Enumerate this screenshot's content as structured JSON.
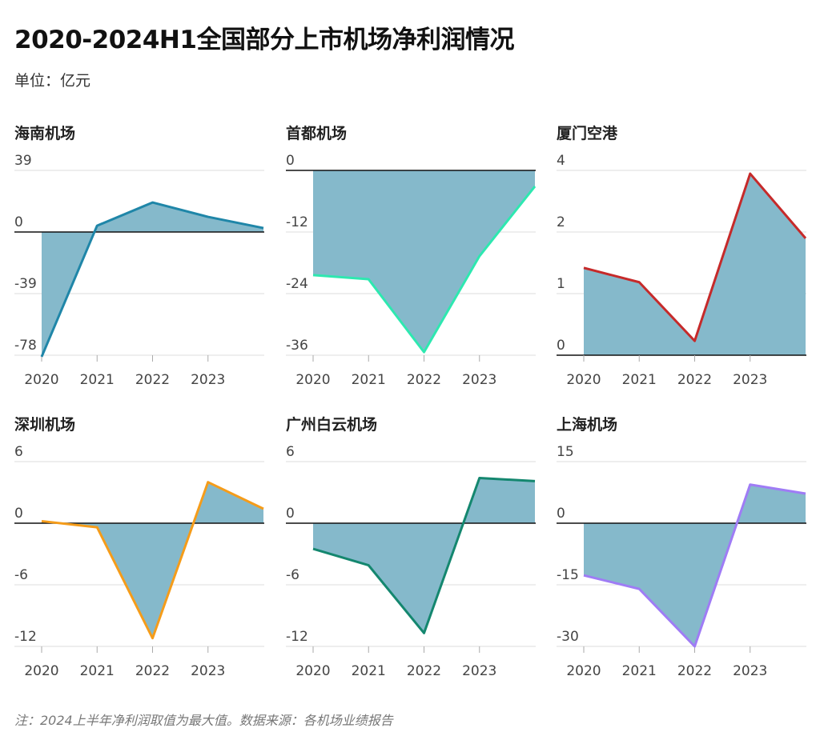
{
  "header": {
    "title": "2020-2024H1全国部分上市机场净利润情况",
    "unit": "单位：亿元"
  },
  "footer": {
    "note": "注：2024上半年净利润取值为最大值。数据来源：各机场业绩报告"
  },
  "colors": {
    "fill": "#85b9cb",
    "grid": "#dddddd",
    "axis": "#111111"
  },
  "chart_data": [
    {
      "type": "area",
      "title": "海南机场",
      "x": [
        "2020",
        "2021",
        "2022",
        "2023",
        "2024H1"
      ],
      "x_tick_labels": [
        "2020",
        "2021",
        "2022",
        "2023"
      ],
      "values": [
        -79,
        4,
        18.7,
        9.6,
        2.5
      ],
      "ylim": [
        -78,
        39
      ],
      "y_ticks": [
        "39",
        "0",
        "-39",
        "-78"
      ],
      "line_color": "#1f86a8"
    },
    {
      "type": "area",
      "title": "首都机场",
      "x": [
        "2020",
        "2021",
        "2022",
        "2023",
        "2024H1"
      ],
      "x_tick_labels": [
        "2020",
        "2021",
        "2022",
        "2023"
      ],
      "values": [
        -20.4,
        -21.2,
        -35.4,
        -16.7,
        -3.1
      ],
      "ylim": [
        -36,
        0
      ],
      "y_ticks": [
        "0",
        "-12",
        "-24",
        "-36"
      ],
      "line_color": "#2ee8b0"
    },
    {
      "type": "area",
      "title": "厦门空港",
      "x": [
        "2020",
        "2021",
        "2022",
        "2023",
        "2024H1"
      ],
      "x_tick_labels": [
        "2020",
        "2021",
        "2022",
        "2023"
      ],
      "values": [
        1.89,
        1.58,
        0.31,
        3.93,
        2.53
      ],
      "ylim": [
        0,
        4
      ],
      "y_ticks": [
        "4",
        "2",
        "1",
        "0"
      ],
      "line_color": "#c62a2a"
    },
    {
      "type": "area",
      "title": "深圳机场",
      "x": [
        "2020",
        "2021",
        "2022",
        "2023",
        "2024H1"
      ],
      "x_tick_labels": [
        "2020",
        "2021",
        "2022",
        "2023"
      ],
      "values": [
        0.2,
        -0.4,
        -11.2,
        4.0,
        1.4
      ],
      "ylim": [
        -12,
        6
      ],
      "y_ticks": [
        "6",
        "0",
        "-6",
        "-12"
      ],
      "line_color": "#f59c1a"
    },
    {
      "type": "area",
      "title": "广州白云机场",
      "x": [
        "2020",
        "2021",
        "2022",
        "2023",
        "2024H1"
      ],
      "x_tick_labels": [
        "2020",
        "2021",
        "2022",
        "2023"
      ],
      "values": [
        -2.5,
        -4.1,
        -10.7,
        4.4,
        4.1
      ],
      "ylim": [
        -12,
        6
      ],
      "y_ticks": [
        "6",
        "0",
        "-6",
        "-12"
      ],
      "line_color": "#14876f"
    },
    {
      "type": "area",
      "title": "上海机场",
      "x": [
        "2020",
        "2021",
        "2022",
        "2023",
        "2024H1"
      ],
      "x_tick_labels": [
        "2020",
        "2021",
        "2022",
        "2023"
      ],
      "values": [
        -12.7,
        -16.0,
        -30.0,
        9.4,
        7.2
      ],
      "ylim": [
        -30,
        15
      ],
      "y_ticks": [
        "15",
        "0",
        "-15",
        "-30"
      ],
      "line_color": "#9f7cf5"
    }
  ]
}
